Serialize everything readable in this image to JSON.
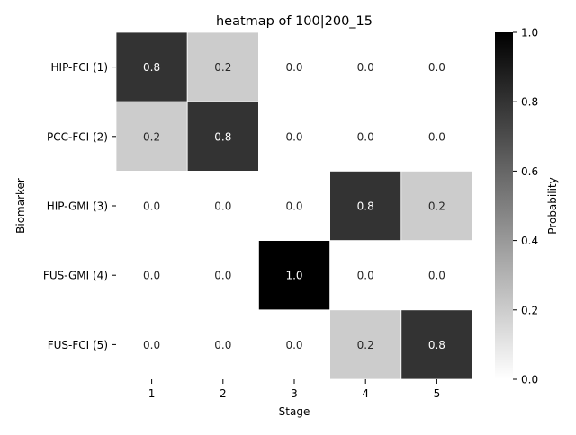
{
  "chart_data": {
    "type": "heatmap",
    "title": "heatmap of 100|200_15",
    "xlabel": "Stage",
    "ylabel": "Biomarker",
    "x_categories": [
      "1",
      "2",
      "3",
      "4",
      "5"
    ],
    "y_categories": [
      "HIP-FCI (1)",
      "PCC-FCI (2)",
      "HIP-GMI (3)",
      "FUS-GMI (4)",
      "FUS-FCI (5)"
    ],
    "values": [
      [
        0.8,
        0.2,
        0.0,
        0.0,
        0.0
      ],
      [
        0.2,
        0.8,
        0.0,
        0.0,
        0.0
      ],
      [
        0.0,
        0.0,
        0.0,
        0.8,
        0.2
      ],
      [
        0.0,
        0.0,
        1.0,
        0.0,
        0.0
      ],
      [
        0.0,
        0.0,
        0.0,
        0.2,
        0.8
      ]
    ],
    "value_format": "0.0",
    "colorbar": {
      "label": "Probability",
      "range": [
        0.0,
        1.0
      ],
      "ticks": [
        0.0,
        0.2,
        0.4,
        0.6,
        0.8,
        1.0
      ],
      "tick_labels": [
        "0.0",
        "0.2",
        "0.4",
        "0.6",
        "0.8",
        "1.0"
      ],
      "colormap": "Greys",
      "low_color": "#ffffff",
      "high_color": "#000000"
    },
    "cell_separator_color": "#ffffff"
  }
}
